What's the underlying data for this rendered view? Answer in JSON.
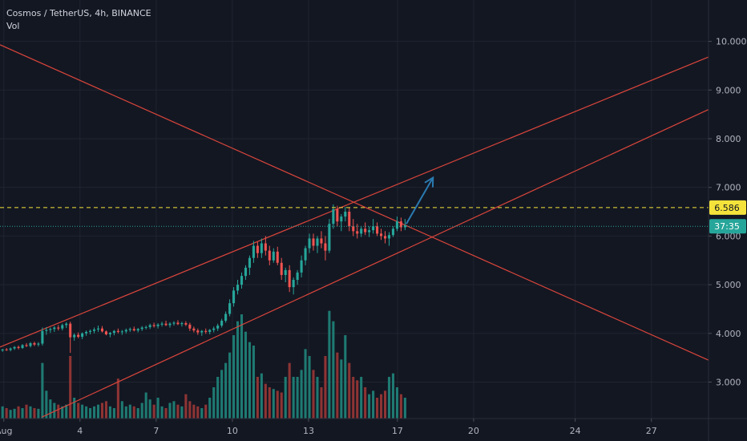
{
  "header": {
    "symbol_line": "Cosmos / TetherUS, 4h, BINANCE",
    "indicator_label": "Vol"
  },
  "colors": {
    "background": "#131722",
    "grid": "#1f2430",
    "up": "#26a69a",
    "down": "#ef5350",
    "vol_up": "#1e7a72",
    "vol_down": "#8e3434",
    "channel_lines": "#d9453b",
    "arrow": "#2a7ab0",
    "resistance_line": "#f5e33b",
    "current_price_line": "#26a69a",
    "axis_text": "#b2b5be"
  },
  "chart_data": {
    "type": "candlestick",
    "y_axis": {
      "range": [
        2.25,
        10.85
      ],
      "ticks": [
        "3.000",
        "4.000",
        "5.000",
        "6.000",
        "7.000",
        "8.000",
        "9.000",
        "10.000"
      ],
      "tick_values": [
        3,
        4,
        5,
        6,
        7,
        8,
        9,
        10
      ]
    },
    "x_axis": {
      "range": [
        -0.15,
        27.75
      ],
      "tick_labels": [
        "Aug",
        "4",
        "7",
        "10",
        "13",
        "17",
        "20",
        "24",
        "27"
      ],
      "tick_values": [
        0,
        3,
        6,
        9,
        12,
        15.5,
        18.5,
        22.5,
        25.5
      ]
    },
    "resistance": {
      "value": 6.586,
      "label": "6.586"
    },
    "last_price": {
      "value": 6.2,
      "countdown": "37:35"
    },
    "trendlines": [
      {
        "name": "descending-line",
        "from": [
          -0.15,
          9.93
        ],
        "to": [
          27.75,
          3.45
        ]
      },
      {
        "name": "channel-upper",
        "from": [
          -0.15,
          3.72
        ],
        "to": [
          27.75,
          9.68
        ]
      },
      {
        "name": "channel-lower",
        "from": [
          1.5,
          2.28
        ],
        "to": [
          27.75,
          8.6
        ]
      }
    ],
    "projection_arrow": {
      "from": [
        15.85,
        6.25
      ],
      "to": [
        16.9,
        7.2
      ]
    },
    "candles_ohlc": [
      [
        3.65,
        3.68,
        3.62,
        3.67
      ],
      [
        3.67,
        3.7,
        3.64,
        3.66
      ],
      [
        3.66,
        3.71,
        3.63,
        3.69
      ],
      [
        3.69,
        3.74,
        3.66,
        3.72
      ],
      [
        3.72,
        3.75,
        3.67,
        3.7
      ],
      [
        3.7,
        3.78,
        3.68,
        3.76
      ],
      [
        3.76,
        3.8,
        3.72,
        3.74
      ],
      [
        3.74,
        3.82,
        3.71,
        3.8
      ],
      [
        3.8,
        3.83,
        3.74,
        3.77
      ],
      [
        3.77,
        3.82,
        3.73,
        3.79
      ],
      [
        3.79,
        4.12,
        3.75,
        4.05
      ],
      [
        4.05,
        4.13,
        3.97,
        4.07
      ],
      [
        4.07,
        4.12,
        4.01,
        4.09
      ],
      [
        4.09,
        4.15,
        4.03,
        4.12
      ],
      [
        4.12,
        4.17,
        4.06,
        4.1
      ],
      [
        4.1,
        4.2,
        4.06,
        4.17
      ],
      [
        4.17,
        4.23,
        4.11,
        4.2
      ],
      [
        4.2,
        4.24,
        3.6,
        3.92
      ],
      [
        3.92,
        4.0,
        3.85,
        3.97
      ],
      [
        3.97,
        4.02,
        3.9,
        3.93
      ],
      [
        3.93,
        4.02,
        3.88,
        4.0
      ],
      [
        4.0,
        4.06,
        3.95,
        4.03
      ],
      [
        4.03,
        4.08,
        3.98,
        4.05
      ],
      [
        4.05,
        4.12,
        4.0,
        4.08
      ],
      [
        4.08,
        4.16,
        4.03,
        4.1
      ],
      [
        4.1,
        4.15,
        4.02,
        4.04
      ],
      [
        4.04,
        4.06,
        3.96,
        3.98
      ],
      [
        3.98,
        4.03,
        3.92,
        4.01
      ],
      [
        4.01,
        4.07,
        3.96,
        4.05
      ],
      [
        4.05,
        4.1,
        4.0,
        4.03
      ],
      [
        4.03,
        4.07,
        3.97,
        4.04
      ],
      [
        4.04,
        4.1,
        4.0,
        4.07
      ],
      [
        4.07,
        4.12,
        4.03,
        4.09
      ],
      [
        4.09,
        4.14,
        4.04,
        4.06
      ],
      [
        4.06,
        4.11,
        4.02,
        4.09
      ],
      [
        4.09,
        4.15,
        4.05,
        4.12
      ],
      [
        4.12,
        4.16,
        4.08,
        4.13
      ],
      [
        4.13,
        4.2,
        4.09,
        4.17
      ],
      [
        4.17,
        4.22,
        4.12,
        4.15
      ],
      [
        4.15,
        4.21,
        4.1,
        4.18
      ],
      [
        4.18,
        4.24,
        4.14,
        4.2
      ],
      [
        4.2,
        4.26,
        4.15,
        4.17
      ],
      [
        4.17,
        4.23,
        4.12,
        4.2
      ],
      [
        4.2,
        4.25,
        4.16,
        4.22
      ],
      [
        4.22,
        4.27,
        4.17,
        4.19
      ],
      [
        4.19,
        4.24,
        4.14,
        4.21
      ],
      [
        4.21,
        4.25,
        4.15,
        4.18
      ],
      [
        4.18,
        4.22,
        4.05,
        4.1
      ],
      [
        4.1,
        4.14,
        4.02,
        4.06
      ],
      [
        4.06,
        4.1,
        3.97,
        4.02
      ],
      [
        4.02,
        4.07,
        3.95,
        4.05
      ],
      [
        4.05,
        4.1,
        3.99,
        4.03
      ],
      [
        4.03,
        4.09,
        3.98,
        4.07
      ],
      [
        4.07,
        4.14,
        4.02,
        4.1
      ],
      [
        4.1,
        4.2,
        4.05,
        4.16
      ],
      [
        4.16,
        4.3,
        4.12,
        4.26
      ],
      [
        4.26,
        4.45,
        4.22,
        4.4
      ],
      [
        4.4,
        4.7,
        4.35,
        4.62
      ],
      [
        4.62,
        4.95,
        4.55,
        4.88
      ],
      [
        4.88,
        5.1,
        4.8,
        5.0
      ],
      [
        5.0,
        5.25,
        4.92,
        5.18
      ],
      [
        5.18,
        5.4,
        5.1,
        5.35
      ],
      [
        5.35,
        5.6,
        5.2,
        5.55
      ],
      [
        5.55,
        5.9,
        5.45,
        5.8
      ],
      [
        5.8,
        5.88,
        5.55,
        5.65
      ],
      [
        5.65,
        5.95,
        5.55,
        5.85
      ],
      [
        5.85,
        6.0,
        5.6,
        5.7
      ],
      [
        5.7,
        5.8,
        5.4,
        5.5
      ],
      [
        5.5,
        5.75,
        5.45,
        5.68
      ],
      [
        5.68,
        5.78,
        5.4,
        5.45
      ],
      [
        5.45,
        5.55,
        5.1,
        5.2
      ],
      [
        5.2,
        5.35,
        5.05,
        5.3
      ],
      [
        5.3,
        5.4,
        4.85,
        4.95
      ],
      [
        4.95,
        5.15,
        4.8,
        5.1
      ],
      [
        5.1,
        5.3,
        5.0,
        5.25
      ],
      [
        5.25,
        5.6,
        5.15,
        5.5
      ],
      [
        5.5,
        5.8,
        5.4,
        5.75
      ],
      [
        5.75,
        6.05,
        5.65,
        5.95
      ],
      [
        5.95,
        6.05,
        5.7,
        5.8
      ],
      [
        5.8,
        6.0,
        5.65,
        5.95
      ],
      [
        5.95,
        6.1,
        5.75,
        5.85
      ],
      [
        5.85,
        6.0,
        5.5,
        5.7
      ],
      [
        5.7,
        6.35,
        5.65,
        6.25
      ],
      [
        6.25,
        6.65,
        6.15,
        6.55
      ],
      [
        6.55,
        6.62,
        6.2,
        6.3
      ],
      [
        6.3,
        6.45,
        6.1,
        6.4
      ],
      [
        6.4,
        6.6,
        6.3,
        6.5
      ],
      [
        6.5,
        6.58,
        6.1,
        6.2
      ],
      [
        6.2,
        6.35,
        6.0,
        6.1
      ],
      [
        6.1,
        6.25,
        5.95,
        6.05
      ],
      [
        6.05,
        6.2,
        5.98,
        6.15
      ],
      [
        6.15,
        6.28,
        6.02,
        6.08
      ],
      [
        6.08,
        6.2,
        5.98,
        6.12
      ],
      [
        6.12,
        6.35,
        6.05,
        6.2
      ],
      [
        6.2,
        6.28,
        6.0,
        6.05
      ],
      [
        6.05,
        6.15,
        5.92,
        6.0
      ],
      [
        6.0,
        6.1,
        5.85,
        5.95
      ],
      [
        5.95,
        6.08,
        5.8,
        6.02
      ],
      [
        6.02,
        6.2,
        5.98,
        6.15
      ],
      [
        6.15,
        6.4,
        6.1,
        6.3
      ],
      [
        6.3,
        6.38,
        6.1,
        6.18
      ],
      [
        6.18,
        6.35,
        6.12,
        6.22
      ]
    ],
    "volumes": [
      0.35,
      0.3,
      0.25,
      0.28,
      0.35,
      0.3,
      0.4,
      0.35,
      0.3,
      0.28,
      1.6,
      0.8,
      0.55,
      0.45,
      0.4,
      0.35,
      0.4,
      1.8,
      0.6,
      0.45,
      0.4,
      0.35,
      0.3,
      0.35,
      0.4,
      0.45,
      0.5,
      0.35,
      0.3,
      1.15,
      0.5,
      0.35,
      0.4,
      0.35,
      0.3,
      0.45,
      0.75,
      0.55,
      0.4,
      0.6,
      0.35,
      0.3,
      0.45,
      0.5,
      0.4,
      0.35,
      0.7,
      0.5,
      0.4,
      0.35,
      0.3,
      0.4,
      0.6,
      0.9,
      1.2,
      1.4,
      1.6,
      1.9,
      2.4,
      2.8,
      3.0,
      2.5,
      2.2,
      2.1,
      1.2,
      1.3,
      1.0,
      0.9,
      0.85,
      0.8,
      0.75,
      1.2,
      1.6,
      1.2,
      1.2,
      1.4,
      2.0,
      1.8,
      1.4,
      1.2,
      0.9,
      1.8,
      3.1,
      2.8,
      1.9,
      1.7,
      2.4,
      1.6,
      1.2,
      1.1,
      1.2,
      0.9,
      0.7,
      0.8,
      0.6,
      0.7,
      0.8,
      1.2,
      1.3,
      0.9,
      0.7,
      0.6
    ]
  }
}
